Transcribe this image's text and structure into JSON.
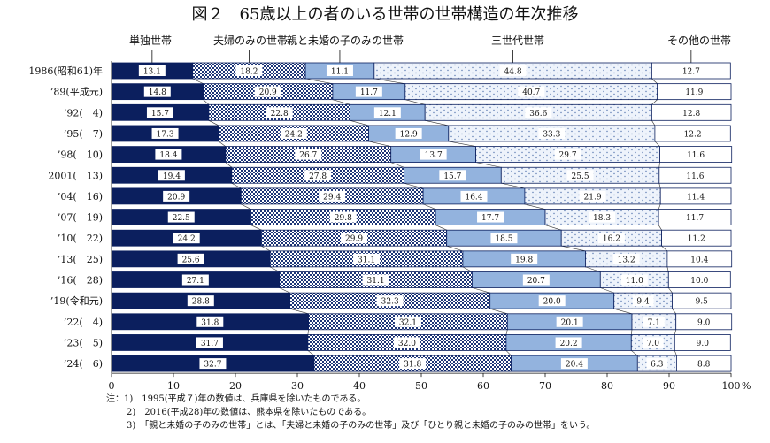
{
  "chart_data": {
    "type": "bar",
    "orientation": "horizontal",
    "stacked": "percent",
    "title": "図２　65歳以上の者のいる世帯の世帯構造の年次推移",
    "categories": [
      "1986(昭和61)年",
      "’89(平成元)",
      "’92(　4)",
      "’95(　7)",
      "’98(　10)",
      "2001(　13)",
      "’04(　16)",
      "’07(　19)",
      "’10(　22)",
      "’13(　25)",
      "’16(　28)",
      "’19(令和元)",
      "’22(　4)",
      "’23(　5)",
      "’24(　6)"
    ],
    "series": [
      {
        "name": "単独世帯",
        "color": "#0b1f5e",
        "pattern": "solid",
        "values": [
          13.1,
          14.8,
          15.7,
          17.3,
          18.4,
          19.4,
          20.9,
          22.5,
          24.2,
          25.6,
          27.1,
          28.8,
          31.8,
          31.7,
          32.7
        ]
      },
      {
        "name": "夫婦のみの世帯",
        "color": "#1d3577",
        "pattern": "checker",
        "values": [
          18.2,
          20.9,
          22.8,
          24.2,
          26.7,
          27.8,
          29.4,
          29.8,
          29.9,
          31.1,
          31.1,
          32.3,
          32.1,
          32.0,
          31.8
        ]
      },
      {
        "name": "親と未婚の子のみの世帯",
        "color": "#93b3de",
        "pattern": "solid",
        "values": [
          11.1,
          11.7,
          12.1,
          12.9,
          13.7,
          15.7,
          16.4,
          17.7,
          18.5,
          19.8,
          20.7,
          20.0,
          20.1,
          20.2,
          20.4
        ]
      },
      {
        "name": "三世代世帯",
        "color": "#eef3fb",
        "pattern": "dots",
        "values": [
          44.8,
          40.7,
          36.6,
          33.3,
          29.7,
          25.5,
          21.9,
          18.3,
          16.2,
          13.2,
          11.0,
          9.4,
          7.1,
          7.0,
          6.3
        ]
      },
      {
        "name": "その他の世帯",
        "color": "#ffffff",
        "pattern": "solid",
        "values": [
          12.7,
          11.9,
          12.8,
          12.2,
          11.6,
          11.6,
          11.4,
          11.7,
          11.2,
          10.4,
          10.0,
          9.5,
          9.0,
          9.0,
          8.8
        ]
      }
    ],
    "xlim": [
      0,
      100
    ],
    "xticks": [
      "0",
      "10",
      "20",
      "30",
      "40",
      "50",
      "60",
      "70",
      "80",
      "90",
      "100"
    ],
    "xunit": "%",
    "legend_placement": "top",
    "grid": false,
    "notes": [
      "注：1)　1995(平成７)年の数値は、兵庫県を除いたものである。",
      "2)　2016(平成28)年の数値は、熊本県を除いたものである。",
      "3)　「親と未婚の子のみの世帯」とは、「夫婦と未婚の子のみの世帯」及び「ひとり親と未婚の子のみの世帯」をいう。"
    ]
  }
}
